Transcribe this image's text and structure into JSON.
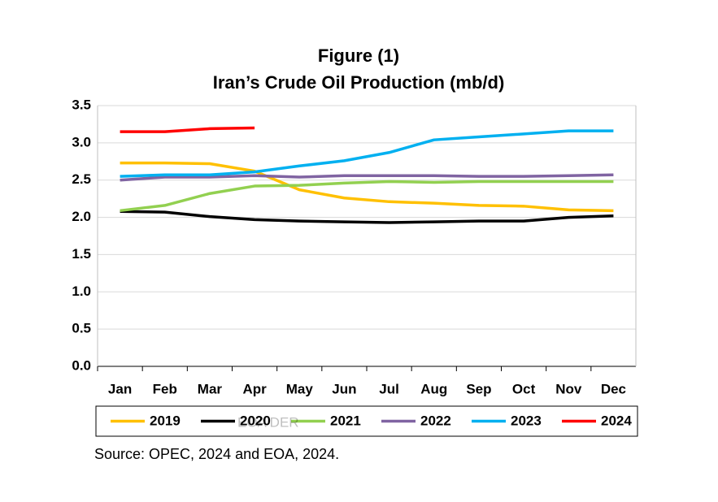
{
  "chart_data": {
    "type": "line",
    "title": "Figure (1)",
    "subtitle": "Iran’s Crude Oil Production (mb/d)",
    "source": "Source: OPEC, 2024 and EOA, 2024.",
    "watermark": "EOA DER",
    "categories": [
      "Jan",
      "Feb",
      "Mar",
      "Apr",
      "May",
      "Jun",
      "Jul",
      "Aug",
      "Sep",
      "Oct",
      "Nov",
      "Dec"
    ],
    "series": [
      {
        "name": "2019",
        "color": "#ffc000",
        "values": [
          2.73,
          2.73,
          2.72,
          2.62,
          2.37,
          2.26,
          2.21,
          2.19,
          2.16,
          2.15,
          2.1,
          2.09
        ]
      },
      {
        "name": "2020",
        "color": "#000000",
        "values": [
          2.08,
          2.07,
          2.01,
          1.97,
          1.95,
          1.94,
          1.93,
          1.94,
          1.95,
          1.95,
          2.0,
          2.02
        ]
      },
      {
        "name": "2021",
        "color": "#92d050",
        "values": [
          2.09,
          2.16,
          2.32,
          2.42,
          2.43,
          2.46,
          2.48,
          2.47,
          2.48,
          2.48,
          2.48,
          2.48
        ]
      },
      {
        "name": "2022",
        "color": "#8064a2",
        "values": [
          2.5,
          2.54,
          2.54,
          2.56,
          2.54,
          2.56,
          2.56,
          2.56,
          2.55,
          2.55,
          2.56,
          2.57
        ]
      },
      {
        "name": "2023",
        "color": "#00b0f0",
        "values": [
          2.55,
          2.57,
          2.57,
          2.61,
          2.69,
          2.76,
          2.87,
          3.04,
          3.08,
          3.12,
          3.16,
          3.16
        ]
      },
      {
        "name": "2024",
        "color": "#ff0000",
        "values": [
          3.15,
          3.15,
          3.19,
          3.2,
          null,
          null,
          null,
          null,
          null,
          null,
          null,
          null
        ]
      }
    ],
    "ylim": [
      0,
      3.5
    ],
    "yticks": [
      {
        "value": 0,
        "label": "0.0"
      },
      0.5,
      {
        "value": 1,
        "label": "1.0"
      },
      1.5,
      {
        "value": 2,
        "label": "2.0"
      },
      2.5,
      {
        "value": 3,
        "label": "3.0"
      },
      3.5
    ],
    "grid": true,
    "legend": "bottom"
  }
}
